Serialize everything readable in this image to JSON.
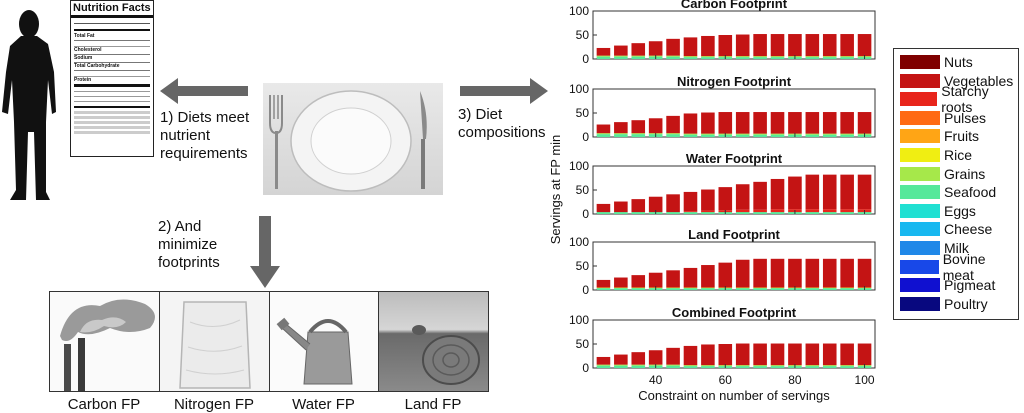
{
  "nutrition_label": {
    "title": "Nutrition Facts",
    "rows": [
      "Total Fat",
      "Cholesterol",
      "Sodium",
      "Total Carbohydrate",
      "Protein"
    ]
  },
  "flow": {
    "step1": [
      "1) Diets meet",
      "nutrient",
      "requirements"
    ],
    "step2": [
      "2) And",
      "minimize",
      "footprints"
    ],
    "step3": [
      "3) Diet",
      "compositions"
    ]
  },
  "photos": [
    {
      "caption": "Carbon FP"
    },
    {
      "caption": "Nitrogen FP"
    },
    {
      "caption": "Water FP"
    },
    {
      "caption": "Land FP"
    }
  ],
  "colors": {
    "Nuts": "#7f0000",
    "Vegetables": "#c41414",
    "Starchy roots": "#e8251b",
    "Pulses": "#ff6a13",
    "Fruits": "#ffa515",
    "Rice": "#f0ee12",
    "Grains": "#a6e84a",
    "Seafood": "#56e89a",
    "Eggs": "#20e0d2",
    "Cheese": "#18b8f0",
    "Milk": "#2088e8",
    "Bovine meat": "#1848e8",
    "Pigmeat": "#1010d0",
    "Poultry": "#08087f"
  },
  "chart_data": {
    "type": "bar",
    "ylabel": "Servings at FP min",
    "xlabel": "Constraint on number of servings",
    "x": [
      25,
      30,
      35,
      40,
      45,
      50,
      55,
      60,
      65,
      70,
      75,
      80,
      85,
      90,
      95,
      100
    ],
    "xticks": [
      40,
      60,
      80,
      100
    ],
    "yticks": [
      0,
      50,
      100
    ],
    "ylim": [
      0,
      100
    ],
    "xlim": [
      22,
      103
    ],
    "legend": [
      "Nuts",
      "Vegetables",
      "Starchy roots",
      "Pulses",
      "Fruits",
      "Rice",
      "Grains",
      "Seafood",
      "Eggs",
      "Cheese",
      "Milk",
      "Bovine meat",
      "Pigmeat",
      "Poultry"
    ],
    "panels": [
      {
        "title": "Carbon Footprint",
        "series": [
          {
            "name": "Seafood",
            "values": [
              5,
              5,
              5,
              5,
              5,
              4,
              4,
              4,
              4,
              4,
              4,
              4,
              4,
              4,
              4,
              4
            ]
          },
          {
            "name": "Grains",
            "values": [
              2,
              2,
              2,
              2,
              2,
              2,
              2,
              2,
              2,
              2,
              2,
              2,
              2,
              2,
              2,
              2
            ]
          },
          {
            "name": "Vegetables",
            "values": [
              16,
              21,
              26,
              30,
              35,
              39,
              42,
              44,
              45,
              46,
              46,
              46,
              46,
              46,
              46,
              46
            ]
          }
        ]
      },
      {
        "title": "Nitrogen Footprint",
        "series": [
          {
            "name": "Seafood",
            "values": [
              6,
              6,
              6,
              6,
              6,
              5,
              5,
              5,
              5,
              5,
              5,
              5,
              5,
              5,
              5,
              5
            ]
          },
          {
            "name": "Grains",
            "values": [
              2,
              2,
              2,
              2,
              2,
              2,
              2,
              2,
              2,
              2,
              2,
              2,
              2,
              2,
              2,
              2
            ]
          },
          {
            "name": "Vegetables",
            "values": [
              18,
              23,
              27,
              31,
              36,
              42,
              44,
              45,
              45,
              45,
              45,
              45,
              45,
              45,
              45,
              45
            ]
          }
        ]
      },
      {
        "title": "Water Footprint",
        "series": [
          {
            "name": "Seafood",
            "values": [
              4,
              4,
              4,
              4,
              4,
              4,
              4,
              4,
              4,
              4,
              4,
              4,
              4,
              4,
              4,
              4
            ]
          },
          {
            "name": "Starchy roots",
            "values": [
              0,
              0,
              0,
              0,
              0,
              2,
              3,
              4,
              5,
              5,
              6,
              6,
              6,
              6,
              6,
              6
            ]
          },
          {
            "name": "Vegetables",
            "values": [
              17,
              22,
              27,
              32,
              37,
              40,
              44,
              48,
              53,
              58,
              63,
              68,
              72,
              72,
              72,
              72
            ]
          }
        ]
      },
      {
        "title": "Land Footprint",
        "series": [
          {
            "name": "Seafood",
            "values": [
              4,
              4,
              4,
              4,
              4,
              4,
              4,
              4,
              4,
              4,
              4,
              4,
              4,
              4,
              4,
              4
            ]
          },
          {
            "name": "Rice",
            "values": [
              1,
              1,
              1,
              1,
              1,
              1,
              1,
              1,
              1,
              1,
              1,
              1,
              1,
              1,
              1,
              1
            ]
          },
          {
            "name": "Vegetables",
            "values": [
              16,
              21,
              26,
              31,
              36,
              41,
              47,
              52,
              58,
              60,
              60,
              60,
              60,
              60,
              60,
              60
            ]
          }
        ]
      },
      {
        "title": "Combined Footprint",
        "series": [
          {
            "name": "Seafood",
            "values": [
              5,
              5,
              5,
              5,
              5,
              4,
              4,
              4,
              4,
              4,
              4,
              4,
              4,
              4,
              4,
              4
            ]
          },
          {
            "name": "Grains",
            "values": [
              2,
              2,
              2,
              2,
              2,
              2,
              2,
              2,
              2,
              2,
              2,
              2,
              2,
              2,
              2,
              2
            ]
          },
          {
            "name": "Vegetables",
            "values": [
              16,
              21,
              26,
              30,
              35,
              40,
              43,
              44,
              45,
              45,
              45,
              45,
              45,
              45,
              45,
              45
            ]
          }
        ]
      }
    ]
  }
}
